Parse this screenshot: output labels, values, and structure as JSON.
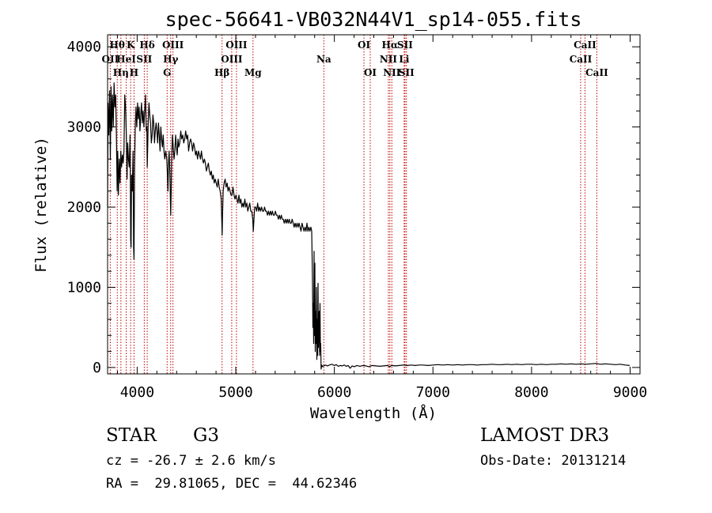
{
  "chart_data": {
    "type": "line",
    "title": "spec-56641-VB032N44V1_sp14-055.fits",
    "xlabel": "Wavelength (Å)",
    "ylabel": "Flux (relative)",
    "xlim": [
      3700,
      9100
    ],
    "ylim": [
      -80,
      4150
    ],
    "xticks": [
      4000,
      5000,
      6000,
      7000,
      8000,
      9000
    ],
    "yticks": [
      0,
      1000,
      2000,
      3000,
      4000
    ],
    "grid": false,
    "line_color": "#000000",
    "line_marker_color": "#c00000",
    "spectrum": [
      [
        3700,
        2000
      ],
      [
        3705,
        3300
      ],
      [
        3712,
        2900
      ],
      [
        3720,
        3450
      ],
      [
        3728,
        2600
      ],
      [
        3735,
        3500
      ],
      [
        3742,
        2950
      ],
      [
        3750,
        3400
      ],
      [
        3758,
        3000
      ],
      [
        3766,
        3550
      ],
      [
        3774,
        3250
      ],
      [
        3782,
        3400
      ],
      [
        3790,
        2850
      ],
      [
        3797,
        2200
      ],
      [
        3803,
        2700
      ],
      [
        3810,
        2150
      ],
      [
        3818,
        2600
      ],
      [
        3826,
        2300
      ],
      [
        3834,
        2700
      ],
      [
        3842,
        2500
      ],
      [
        3850,
        2650
      ],
      [
        3858,
        2550
      ],
      [
        3866,
        2700
      ],
      [
        3874,
        3400
      ],
      [
        3882,
        3250
      ],
      [
        3890,
        2900
      ],
      [
        3897,
        2350
      ],
      [
        3904,
        2800
      ],
      [
        3912,
        2600
      ],
      [
        3920,
        2500
      ],
      [
        3928,
        2900
      ],
      [
        3934,
        1600
      ],
      [
        3938,
        1500
      ],
      [
        3943,
        2400
      ],
      [
        3950,
        2200
      ],
      [
        3958,
        2700
      ],
      [
        3964,
        1500
      ],
      [
        3968,
        1350
      ],
      [
        3974,
        2500
      ],
      [
        3981,
        3000
      ],
      [
        3988,
        3250
      ],
      [
        3996,
        3000
      ],
      [
        4004,
        3300
      ],
      [
        4012,
        3100
      ],
      [
        4020,
        3250
      ],
      [
        4028,
        2950
      ],
      [
        4036,
        3150
      ],
      [
        4044,
        3300
      ],
      [
        4052,
        3050
      ],
      [
        4060,
        3200
      ],
      [
        4068,
        3000
      ],
      [
        4076,
        3200
      ],
      [
        4084,
        3400
      ],
      [
        4092,
        2950
      ],
      [
        4098,
        3000
      ],
      [
        4102,
        2500
      ],
      [
        4106,
        2700
      ],
      [
        4112,
        3050
      ],
      [
        4120,
        3300
      ],
      [
        4128,
        3150
      ],
      [
        4136,
        3050
      ],
      [
        4144,
        2800
      ],
      [
        4152,
        2900
      ],
      [
        4160,
        3150
      ],
      [
        4168,
        3050
      ],
      [
        4176,
        2800
      ],
      [
        4184,
        2950
      ],
      [
        4192,
        3050
      ],
      [
        4200,
        2950
      ],
      [
        4208,
        2800
      ],
      [
        4216,
        3050
      ],
      [
        4224,
        2900
      ],
      [
        4232,
        2700
      ],
      [
        4240,
        3000
      ],
      [
        4248,
        2850
      ],
      [
        4256,
        2750
      ],
      [
        4264,
        2900
      ],
      [
        4272,
        2700
      ],
      [
        4280,
        2600
      ],
      [
        4290,
        2700
      ],
      [
        4300,
        2600
      ],
      [
        4306,
        2450
      ],
      [
        4312,
        2200
      ],
      [
        4318,
        2550
      ],
      [
        4324,
        2700
      ],
      [
        4332,
        2400
      ],
      [
        4340,
        1900
      ],
      [
        4344,
        2150
      ],
      [
        4350,
        2600
      ],
      [
        4358,
        2900
      ],
      [
        4366,
        2750
      ],
      [
        4374,
        2600
      ],
      [
        4382,
        2700
      ],
      [
        4390,
        2900
      ],
      [
        4398,
        2750
      ],
      [
        4406,
        2650
      ],
      [
        4414,
        2850
      ],
      [
        4422,
        2750
      ],
      [
        4432,
        2800
      ],
      [
        4442,
        2950
      ],
      [
        4452,
        2850
      ],
      [
        4462,
        2900
      ],
      [
        4472,
        2800
      ],
      [
        4482,
        2850
      ],
      [
        4492,
        2950
      ],
      [
        4502,
        2850
      ],
      [
        4512,
        2900
      ],
      [
        4522,
        2700
      ],
      [
        4532,
        2800
      ],
      [
        4542,
        2850
      ],
      [
        4552,
        2800
      ],
      [
        4562,
        2700
      ],
      [
        4572,
        2800
      ],
      [
        4582,
        2750
      ],
      [
        4592,
        2650
      ],
      [
        4602,
        2700
      ],
      [
        4612,
        2600
      ],
      [
        4622,
        2700
      ],
      [
        4632,
        2650
      ],
      [
        4642,
        2600
      ],
      [
        4652,
        2700
      ],
      [
        4662,
        2600
      ],
      [
        4672,
        2550
      ],
      [
        4682,
        2600
      ],
      [
        4692,
        2550
      ],
      [
        4702,
        2450
      ],
      [
        4712,
        2500
      ],
      [
        4722,
        2550
      ],
      [
        4732,
        2450
      ],
      [
        4742,
        2400
      ],
      [
        4752,
        2450
      ],
      [
        4762,
        2350
      ],
      [
        4772,
        2400
      ],
      [
        4782,
        2300
      ],
      [
        4792,
        2350
      ],
      [
        4802,
        2300
      ],
      [
        4812,
        2250
      ],
      [
        4822,
        2350
      ],
      [
        4832,
        2250
      ],
      [
        4842,
        2200
      ],
      [
        4852,
        2100
      ],
      [
        4858,
        1850
      ],
      [
        4862,
        1650
      ],
      [
        4866,
        1900
      ],
      [
        4872,
        2200
      ],
      [
        4882,
        2300
      ],
      [
        4892,
        2350
      ],
      [
        4902,
        2250
      ],
      [
        4912,
        2300
      ],
      [
        4922,
        2200
      ],
      [
        4932,
        2250
      ],
      [
        4942,
        2200
      ],
      [
        4952,
        2150
      ],
      [
        4962,
        2150
      ],
      [
        4972,
        2250
      ],
      [
        4982,
        2150
      ],
      [
        4992,
        2100
      ],
      [
        5002,
        2150
      ],
      [
        5012,
        2100
      ],
      [
        5022,
        2050
      ],
      [
        5032,
        2150
      ],
      [
        5042,
        2050
      ],
      [
        5052,
        2100
      ],
      [
        5062,
        2000
      ],
      [
        5072,
        2050
      ],
      [
        5082,
        2000
      ],
      [
        5092,
        2100
      ],
      [
        5102,
        2000
      ],
      [
        5112,
        2050
      ],
      [
        5122,
        1950
      ],
      [
        5132,
        2000
      ],
      [
        5142,
        2050
      ],
      [
        5152,
        1950
      ],
      [
        5162,
        1950
      ],
      [
        5172,
        1850
      ],
      [
        5178,
        1700
      ],
      [
        5184,
        1850
      ],
      [
        5192,
        2000
      ],
      [
        5202,
        2000
      ],
      [
        5212,
        1950
      ],
      [
        5222,
        2050
      ],
      [
        5232,
        1950
      ],
      [
        5242,
        2000
      ],
      [
        5252,
        1950
      ],
      [
        5262,
        2000
      ],
      [
        5272,
        1950
      ],
      [
        5282,
        1950
      ],
      [
        5292,
        2000
      ],
      [
        5302,
        1950
      ],
      [
        5312,
        1950
      ],
      [
        5322,
        1900
      ],
      [
        5332,
        1950
      ],
      [
        5342,
        1900
      ],
      [
        5352,
        1950
      ],
      [
        5362,
        1900
      ],
      [
        5372,
        1950
      ],
      [
        5382,
        1900
      ],
      [
        5392,
        1900
      ],
      [
        5402,
        1950
      ],
      [
        5412,
        1900
      ],
      [
        5422,
        1900
      ],
      [
        5432,
        1850
      ],
      [
        5442,
        1900
      ],
      [
        5452,
        1850
      ],
      [
        5462,
        1900
      ],
      [
        5472,
        1850
      ],
      [
        5482,
        1850
      ],
      [
        5492,
        1800
      ],
      [
        5502,
        1850
      ],
      [
        5512,
        1800
      ],
      [
        5522,
        1850
      ],
      [
        5532,
        1800
      ],
      [
        5542,
        1850
      ],
      [
        5552,
        1800
      ],
      [
        5562,
        1800
      ],
      [
        5572,
        1850
      ],
      [
        5582,
        1800
      ],
      [
        5592,
        1750
      ],
      [
        5602,
        1800
      ],
      [
        5612,
        1750
      ],
      [
        5622,
        1800
      ],
      [
        5632,
        1750
      ],
      [
        5642,
        1800
      ],
      [
        5652,
        1750
      ],
      [
        5662,
        1700
      ],
      [
        5672,
        1800
      ],
      [
        5682,
        1750
      ],
      [
        5692,
        1700
      ],
      [
        5702,
        1750
      ],
      [
        5712,
        1700
      ],
      [
        5722,
        1800
      ],
      [
        5732,
        1700
      ],
      [
        5742,
        1750
      ],
      [
        5752,
        1700
      ],
      [
        5762,
        1750
      ],
      [
        5770,
        1700
      ],
      [
        5778,
        1100
      ],
      [
        5782,
        500
      ],
      [
        5786,
        800
      ],
      [
        5790,
        300
      ],
      [
        5794,
        1450
      ],
      [
        5798,
        400
      ],
      [
        5802,
        1300
      ],
      [
        5806,
        200
      ],
      [
        5810,
        700
      ],
      [
        5814,
        300
      ],
      [
        5818,
        1000
      ],
      [
        5822,
        100
      ],
      [
        5826,
        600
      ],
      [
        5830,
        150
      ],
      [
        5834,
        1050
      ],
      [
        5838,
        250
      ],
      [
        5842,
        600
      ],
      [
        5846,
        700
      ],
      [
        5850,
        150
      ],
      [
        5854,
        800
      ],
      [
        5858,
        200
      ],
      [
        5862,
        300
      ],
      [
        5866,
        -20
      ],
      [
        5872,
        30
      ],
      [
        5880,
        10
      ],
      [
        5890,
        20
      ],
      [
        5910,
        30
      ],
      [
        5930,
        20
      ],
      [
        5950,
        30
      ],
      [
        5975,
        40
      ],
      [
        6000,
        25
      ],
      [
        6020,
        35
      ],
      [
        6040,
        15
      ],
      [
        6060,
        25
      ],
      [
        6080,
        20
      ],
      [
        6100,
        30
      ],
      [
        6120,
        15
      ],
      [
        6140,
        25
      ],
      [
        6160,
        -10
      ],
      [
        6180,
        20
      ],
      [
        6200,
        10
      ],
      [
        6230,
        25
      ],
      [
        6260,
        15
      ],
      [
        6290,
        25
      ],
      [
        6320,
        20
      ],
      [
        6350,
        10
      ],
      [
        6380,
        25
      ],
      [
        6420,
        20
      ],
      [
        6460,
        15
      ],
      [
        6500,
        20
      ],
      [
        6540,
        25
      ],
      [
        6560,
        10
      ],
      [
        6580,
        25
      ],
      [
        6620,
        20
      ],
      [
        6660,
        25
      ],
      [
        6700,
        30
      ],
      [
        6740,
        25
      ],
      [
        6780,
        30
      ],
      [
        6820,
        25
      ],
      [
        6860,
        30
      ],
      [
        6900,
        30
      ],
      [
        6950,
        25
      ],
      [
        7000,
        30
      ],
      [
        7050,
        35
      ],
      [
        7100,
        30
      ],
      [
        7150,
        35
      ],
      [
        7200,
        30
      ],
      [
        7250,
        35
      ],
      [
        7300,
        30
      ],
      [
        7350,
        35
      ],
      [
        7400,
        35
      ],
      [
        7450,
        30
      ],
      [
        7500,
        35
      ],
      [
        7550,
        35
      ],
      [
        7600,
        40
      ],
      [
        7650,
        35
      ],
      [
        7700,
        35
      ],
      [
        7750,
        40
      ],
      [
        7800,
        35
      ],
      [
        7850,
        40
      ],
      [
        7900,
        35
      ],
      [
        7950,
        40
      ],
      [
        8000,
        40
      ],
      [
        8050,
        35
      ],
      [
        8100,
        40
      ],
      [
        8150,
        35
      ],
      [
        8200,
        40
      ],
      [
        8250,
        40
      ],
      [
        8300,
        45
      ],
      [
        8350,
        40
      ],
      [
        8400,
        45
      ],
      [
        8450,
        40
      ],
      [
        8500,
        45
      ],
      [
        8550,
        40
      ],
      [
        8600,
        45
      ],
      [
        8650,
        50
      ],
      [
        8700,
        40
      ],
      [
        8750,
        45
      ],
      [
        8800,
        40
      ],
      [
        8850,
        35
      ],
      [
        8900,
        40
      ],
      [
        8950,
        30
      ],
      [
        8995,
        25
      ]
    ],
    "lines": [
      {
        "wave": 3727,
        "label": "OII",
        "row": 2
      },
      {
        "wave": 3798,
        "label": "Hθ",
        "row": 1
      },
      {
        "wave": 3835,
        "label": "Hη",
        "row": 3
      },
      {
        "wave": 3889,
        "label": "HeI",
        "row": 2
      },
      {
        "wave": 3934,
        "label": "K",
        "row": 1
      },
      {
        "wave": 3968,
        "label": "H",
        "row": 3
      },
      {
        "wave": 4072,
        "label": "SII",
        "row": 2
      },
      {
        "wave": 4102,
        "label": "Hδ",
        "row": 1
      },
      {
        "wave": 4304,
        "label": "G",
        "row": 3
      },
      {
        "wave": 4340,
        "label": "Hγ",
        "row": 2
      },
      {
        "wave": 4363,
        "label": "OIII",
        "row": 1
      },
      {
        "wave": 4861,
        "label": "Hβ",
        "row": 3
      },
      {
        "wave": 4959,
        "label": "OIII",
        "row": 2
      },
      {
        "wave": 5007,
        "label": "OIII",
        "row": 1
      },
      {
        "wave": 5175,
        "label": "Mg",
        "row": 3
      },
      {
        "wave": 5893,
        "label": "Na",
        "row": 2
      },
      {
        "wave": 6300,
        "label": "OI",
        "row": 1
      },
      {
        "wave": 6364,
        "label": "OI",
        "row": 3
      },
      {
        "wave": 6548,
        "label": "NII",
        "row": 2
      },
      {
        "wave": 6563,
        "label": "Hα",
        "row": 1
      },
      {
        "wave": 6583,
        "label": "NII",
        "row": 3
      },
      {
        "wave": 6708,
        "label": "Li",
        "row": 2
      },
      {
        "wave": 6716,
        "label": "SII",
        "row": 1
      },
      {
        "wave": 6731,
        "label": "SII",
        "row": 3
      },
      {
        "wave": 8498,
        "label": "CaII",
        "row": 2
      },
      {
        "wave": 8542,
        "label": "CaII",
        "row": 1
      },
      {
        "wave": 8662,
        "label": "CaII",
        "row": 3
      }
    ]
  },
  "info": {
    "object_class": "STAR",
    "subclass": "G3",
    "survey": "LAMOST DR3",
    "cz": "cz = -26.7 ± 2.6 km/s",
    "obs_date": "Obs-Date: 20131214",
    "coords": "RA =  29.81065, DEC =  44.62346"
  }
}
